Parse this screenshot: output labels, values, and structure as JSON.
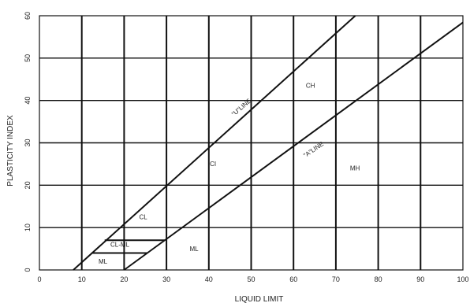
{
  "chart_data": {
    "type": "line",
    "title": "",
    "xlabel": "LIQUID LIMIT",
    "ylabel": "PLASTICITY INDEX",
    "xlim": [
      0,
      100
    ],
    "ylim": [
      0,
      60
    ],
    "x_ticks": [
      0,
      10,
      20,
      30,
      40,
      50,
      60,
      70,
      80,
      90,
      100
    ],
    "y_ticks": [
      0,
      10,
      20,
      30,
      40,
      50,
      60
    ],
    "grid": true,
    "series": [
      {
        "name": "\"U\" LINE",
        "points": [
          [
            8,
            0
          ],
          [
            74.6,
            60
          ]
        ]
      },
      {
        "name": "\"A\" LINE",
        "points": [
          [
            20,
            0
          ],
          [
            100,
            58.4
          ]
        ]
      }
    ],
    "boundaries": [
      {
        "points": [
          [
            15.4,
            7
          ],
          [
            29.6,
            7
          ]
        ]
      },
      {
        "points": [
          [
            12.3,
            4
          ],
          [
            25.5,
            4
          ]
        ]
      }
    ],
    "region_labels": [
      {
        "text": "CH",
        "x": 64,
        "y": 43
      },
      {
        "text": "CI",
        "x": 41,
        "y": 24.5
      },
      {
        "text": "MH",
        "x": 74.5,
        "y": 23.5
      },
      {
        "text": "CL",
        "x": 24.5,
        "y": 12
      },
      {
        "text": "CL-ML",
        "x": 19,
        "y": 5.5
      },
      {
        "text": "ML",
        "x": 15,
        "y": 1.5
      },
      {
        "text": "ML",
        "x": 36.5,
        "y": 4.5
      }
    ],
    "line_labels": [
      {
        "text": "\"U\"LINE",
        "x": 48,
        "y": 38,
        "angle": -41
      },
      {
        "text": "\"A\"LINE",
        "x": 65,
        "y": 28,
        "angle": -35
      }
    ]
  }
}
